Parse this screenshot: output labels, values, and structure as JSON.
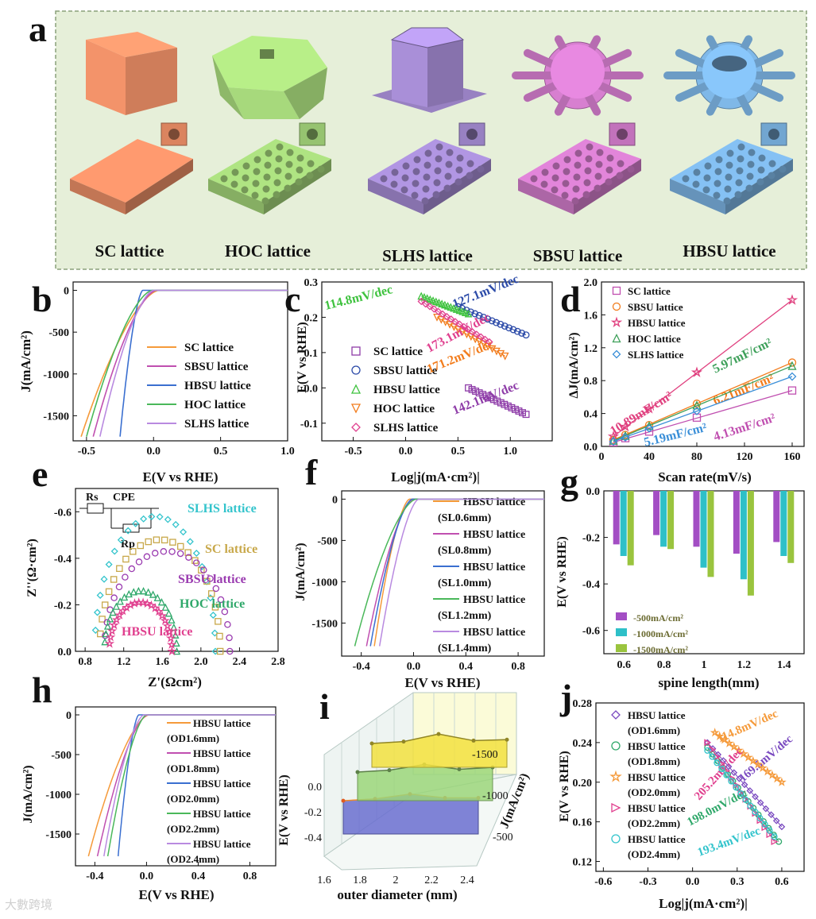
{
  "figure": {
    "panel_letters": [
      "a",
      "b",
      "c",
      "d",
      "e",
      "f",
      "g",
      "h",
      "i",
      "j"
    ],
    "watermark": "大數跨境"
  },
  "panel_a": {
    "labels": [
      "SC lattice",
      "HOC lattice",
      "SLHS lattice",
      "SBSU lattice",
      "HBSU lattice"
    ],
    "colors": [
      "#f3936a",
      "#a7d97c",
      "#a98fd8",
      "#d77fd0",
      "#7fb8e8"
    ]
  },
  "chart_data": [
    {
      "id": "b",
      "type": "line",
      "xlabel": "E(V vs RHE)",
      "ylabel": "J(mA/cm²)",
      "xlim": [
        -0.6,
        1.0
      ],
      "ylim": [
        -1800,
        100
      ],
      "xticks": [
        "-0.5",
        "0.0",
        "0.5",
        "1.0"
      ],
      "yticks": [
        "0",
        "-500",
        "-1000",
        "-1500"
      ],
      "series": [
        {
          "name": "SC lattice",
          "color": "#f59a3a",
          "onset": -0.08,
          "end": -0.54
        },
        {
          "name": "SBSU lattice",
          "color": "#c04fb0",
          "onset": -0.1,
          "end": -0.45
        },
        {
          "name": "HBSU lattice",
          "color": "#3a6fd0",
          "onset": -0.2,
          "end": -0.25
        },
        {
          "name": "HOC lattice",
          "color": "#4ab85a",
          "onset": -0.13,
          "end": -0.5
        },
        {
          "name": "SLHS lattice",
          "color": "#b98ae0",
          "onset": -0.12,
          "end": -0.4
        }
      ]
    },
    {
      "id": "c",
      "type": "scatter",
      "xlabel": "Log|j(mA·cm²)|",
      "ylabel": "E(V vs RHE)",
      "xlim": [
        -0.8,
        1.4
      ],
      "ylim": [
        -0.15,
        0.3
      ],
      "xticks": [
        "-0.5",
        "0.0",
        "0.5",
        "1.0"
      ],
      "yticks": [
        "0.3",
        "0.2",
        "0.1",
        "0.0",
        "-0.1"
      ],
      "series": [
        {
          "name": "SC lattice",
          "color": "#8e3ca8",
          "marker": "square",
          "slope_label": "142.1mV/dec",
          "x": [
            0.6,
            1.15
          ],
          "y": [
            0.0,
            -0.075
          ]
        },
        {
          "name": "SBSU lattice",
          "color": "#2b4aa8",
          "marker": "circle",
          "slope_label": "127.1mV/dec",
          "x": [
            0.5,
            1.15
          ],
          "y": [
            0.23,
            0.15
          ]
        },
        {
          "name": "HBSU lattice",
          "color": "#3ec23e",
          "marker": "triangle",
          "slope_label": "114.8mV/dec",
          "x": [
            0.15,
            0.6
          ],
          "y": [
            0.26,
            0.21
          ]
        },
        {
          "name": "HOC lattice",
          "color": "#f27c1c",
          "marker": "triangle-down",
          "slope_label": "171.2mV/dec",
          "x": [
            0.3,
            0.95
          ],
          "y": [
            0.2,
            0.09
          ]
        },
        {
          "name": "SLHS lattice",
          "color": "#e0408f",
          "marker": "diamond",
          "slope_label": "173.1mV/dec",
          "x": [
            0.15,
            0.8
          ],
          "y": [
            0.245,
            0.13
          ]
        }
      ]
    },
    {
      "id": "d",
      "type": "scatter",
      "xlabel": "Scan rate(mV/s)",
      "ylabel": "ΔJ(mA/cm²)",
      "xlim": [
        0,
        170
      ],
      "ylim": [
        0,
        2.0
      ],
      "xticks": [
        "0",
        "40",
        "80",
        "120",
        "160"
      ],
      "yticks": [
        "0.0",
        "0.4",
        "0.8",
        "1.2",
        "1.6",
        "2.0"
      ],
      "x": [
        10,
        20,
        40,
        80,
        160
      ],
      "series": [
        {
          "name": "SC lattice",
          "color": "#c04fb0",
          "marker": "square",
          "slope_label": "4.13mF/cm²",
          "values": [
            0.05,
            0.1,
            0.18,
            0.35,
            0.68
          ]
        },
        {
          "name": "SBSU lattice",
          "color": "#f27c1c",
          "marker": "circle",
          "slope_label": "6.21mF/cm²",
          "values": [
            0.08,
            0.14,
            0.26,
            0.52,
            1.02
          ]
        },
        {
          "name": "HBSU lattice",
          "color": "#e0407f",
          "marker": "star",
          "slope_label": "10.89mF/cm²",
          "values": [
            0.12,
            0.24,
            0.46,
            0.9,
            1.78
          ]
        },
        {
          "name": "HOC lattice",
          "color": "#3ea05a",
          "marker": "triangle",
          "slope_label": "5.97mF/cm²",
          "values": [
            0.07,
            0.13,
            0.25,
            0.5,
            0.98
          ]
        },
        {
          "name": "SLHS lattice",
          "color": "#3a8fd8",
          "marker": "diamond",
          "slope_label": "5.19mF/cm²",
          "values": [
            0.06,
            0.11,
            0.22,
            0.43,
            0.85
          ]
        }
      ]
    },
    {
      "id": "e",
      "type": "scatter",
      "xlabel": "Z'(Ωcm²)",
      "ylabel": "Z''(Ω·cm²)",
      "xlim": [
        0.7,
        2.8
      ],
      "ylim": [
        0.0,
        -0.7
      ],
      "xticks": [
        "0.8",
        "1.2",
        "1.6",
        "2.0",
        "2.4",
        "2.8"
      ],
      "yticks": [
        "-0.6",
        "-0.4",
        "-0.2",
        "0.0"
      ],
      "circuit": {
        "rs": "Rs",
        "cpe": "CPE",
        "rp": "Rp"
      },
      "series": [
        {
          "name": "SLHS lattice",
          "color": "#33c4cc",
          "marker": "diamond",
          "x_start": 0.9,
          "x_end": 2.15,
          "peak": -0.58
        },
        {
          "name": "SC lattice",
          "color": "#c8a84a",
          "marker": "square",
          "x_start": 0.95,
          "x_end": 2.2,
          "peak": -0.48
        },
        {
          "name": "SBSU lattice",
          "color": "#9a3bb0",
          "marker": "circle",
          "x_start": 1.0,
          "x_end": 2.3,
          "peak": -0.43
        },
        {
          "name": "HOC lattice",
          "color": "#2fa86a",
          "marker": "triangle",
          "x_start": 1.0,
          "x_end": 1.75,
          "peak": -0.26
        },
        {
          "name": "HBSU lattice",
          "color": "#e0408f",
          "marker": "star",
          "x_start": 1.05,
          "x_end": 1.7,
          "peak": -0.21
        }
      ]
    },
    {
      "id": "f",
      "type": "line",
      "xlabel": "E(V vs RHE)",
      "ylabel": "J(mA/cm²)",
      "xlim": [
        -0.55,
        1.0
      ],
      "ylim": [
        -1900,
        100
      ],
      "xticks": [
        "-0.4",
        "0.0",
        "0.4",
        "0.8"
      ],
      "yticks": [
        "0",
        "-500",
        "-1000",
        "-1500"
      ],
      "series": [
        {
          "name": "HBSU lattice",
          "sub": "(SL0.6mm)",
          "color": "#f59a3a",
          "onset": -0.15,
          "end": -0.3
        },
        {
          "name": "HBSU lattice",
          "sub": "(SL0.8mm)",
          "color": "#c04fb0",
          "onset": -0.12,
          "end": -0.36
        },
        {
          "name": "HBSU lattice",
          "sub": "(SL1.0mm)",
          "color": "#3a6fd0",
          "onset": -0.13,
          "end": -0.33
        },
        {
          "name": "HBSU lattice",
          "sub": "(SL1.2mm)",
          "color": "#4ab85a",
          "onset": -0.1,
          "end": -0.45
        },
        {
          "name": "HBSU lattice",
          "sub": "(SL1.4mm)",
          "color": "#b98ae0",
          "onset": -0.08,
          "end": -0.26
        }
      ]
    },
    {
      "id": "g",
      "type": "bar",
      "xlabel": "spine length(mm)",
      "ylabel": "E(V vs RHE)",
      "categories": [
        "0.6",
        "0.8",
        "1",
        "1.2",
        "1.4"
      ],
      "ylim": [
        -0.7,
        0.0
      ],
      "yticks": [
        "0.0",
        "-0.2",
        "-0.4",
        "-0.6"
      ],
      "series": [
        {
          "name": "-500mA/cm²",
          "color": "#a34ec4",
          "values": [
            -0.23,
            -0.19,
            -0.24,
            -0.27,
            -0.22
          ]
        },
        {
          "name": "-1000mA/cm²",
          "color": "#2ec0c8",
          "values": [
            -0.28,
            -0.24,
            -0.33,
            -0.38,
            -0.28
          ]
        },
        {
          "name": "-1500mA/cm²",
          "color": "#9ac43e",
          "values": [
            -0.32,
            -0.25,
            -0.37,
            -0.45,
            -0.31
          ]
        }
      ]
    },
    {
      "id": "h",
      "type": "line",
      "xlabel": "E(V vs RHE)",
      "ylabel": "J(mA/cm²)",
      "xlim": [
        -0.55,
        1.0
      ],
      "ylim": [
        -1900,
        100
      ],
      "xticks": [
        "-0.4",
        "0.0",
        "0.4",
        "0.8"
      ],
      "yticks": [
        "0",
        "-500",
        "-1000",
        "-1500"
      ],
      "series": [
        {
          "name": "HBSU lattice",
          "sub": "(OD1.6mm)",
          "color": "#f59a3a",
          "onset": -0.1,
          "end": -0.45
        },
        {
          "name": "HBSU lattice",
          "sub": "(OD1.8mm)",
          "color": "#c04fb0",
          "onset": -0.11,
          "end": -0.38
        },
        {
          "name": "HBSU lattice",
          "sub": "(OD2.0mm)",
          "color": "#3a6fd0",
          "onset": -0.18,
          "end": -0.22
        },
        {
          "name": "HBSU lattice",
          "sub": "(OD2.2mm)",
          "color": "#4ab85a",
          "onset": -0.12,
          "end": -0.3
        },
        {
          "name": "HBSU lattice",
          "sub": "(OD2.4mm)",
          "color": "#b98ae0",
          "onset": -0.14,
          "end": -0.33
        }
      ]
    },
    {
      "id": "i",
      "type": "area",
      "xlabel": "outer diameter (mm)",
      "ylabel": "E(V vs RHE)",
      "zlabel": "J(mA/cm²)",
      "x": [
        1.6,
        1.8,
        2.0,
        2.2,
        2.4
      ],
      "xticks": [
        "1.6",
        "1.8",
        "2",
        "2.2",
        "2.4"
      ],
      "yticks": [
        "0.0",
        "-0.2",
        "-0.4"
      ],
      "zticks": [
        "-500",
        "-1000",
        "-1500"
      ],
      "series": [
        {
          "name": "-500",
          "color": "#6a6fd0",
          "values": [
            -0.2,
            -0.18,
            -0.13,
            -0.17,
            -0.17
          ]
        },
        {
          "name": "-1000",
          "color": "#9bd67a",
          "values": [
            -0.25,
            -0.23,
            -0.17,
            -0.22,
            -0.2
          ]
        },
        {
          "name": "-1500",
          "color": "#f2e040",
          "values": [
            -0.3,
            -0.28,
            -0.2,
            -0.27,
            -0.26
          ]
        }
      ]
    },
    {
      "id": "j",
      "type": "scatter",
      "xlabel": "Log|j(mA·cm²)|",
      "ylabel": "E(V vs RHE)",
      "xlim": [
        -0.65,
        0.75
      ],
      "ylim": [
        0.11,
        0.28
      ],
      "xticks": [
        "-0.6",
        "-0.3",
        "0.0",
        "0.3",
        "0.6"
      ],
      "yticks": [
        "0.28",
        "0.24",
        "0.20",
        "0.16",
        "0.12"
      ],
      "series": [
        {
          "name": "HBSU lattice",
          "sub": "(OD1.6mm)",
          "color": "#7a4ac0",
          "marker": "diamond",
          "slope_label": "169.5mV/dec",
          "x": [
            0.1,
            0.6
          ],
          "y": [
            0.24,
            0.155
          ]
        },
        {
          "name": "HBSU lattice",
          "sub": "(OD1.8mm)",
          "color": "#2fa86a",
          "marker": "circle",
          "slope_label": "198.0mV/dec",
          "x": [
            0.1,
            0.58
          ],
          "y": [
            0.235,
            0.14
          ]
        },
        {
          "name": "HBSU lattice",
          "sub": "(OD2.0mm)",
          "color": "#f59a3a",
          "marker": "star",
          "slope_label": "114.8mV/dec",
          "x": [
            0.15,
            0.6
          ],
          "y": [
            0.25,
            0.2
          ]
        },
        {
          "name": "HBSU lattice",
          "sub": "(OD2.2mm)",
          "color": "#e0408f",
          "marker": "triangle-right",
          "slope_label": "205.2mV/dec",
          "x": [
            0.1,
            0.55
          ],
          "y": [
            0.24,
            0.14
          ]
        },
        {
          "name": "HBSU lattice",
          "sub": "(OD2.4mm)",
          "color": "#33c4cc",
          "marker": "circle",
          "slope_label": "193.4mV/dec",
          "x": [
            0.1,
            0.55
          ],
          "y": [
            0.232,
            0.145
          ]
        }
      ]
    }
  ]
}
